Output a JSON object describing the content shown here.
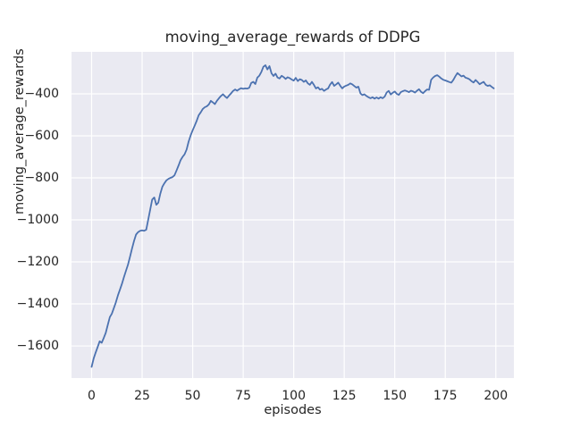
{
  "figure": {
    "kind": "matplotlib-seaborn-darkgrid line plot",
    "background_color": "#ffffff"
  },
  "chart_data": {
    "type": "line",
    "title": "moving_average_rewards of DDPG",
    "xlabel": "episodes",
    "ylabel": "moving_average_rewards",
    "legend": false,
    "grid": true,
    "x_mode": "index",
    "xlim": [
      -9.95,
      208.95
    ],
    "ylim": [
      -1753,
      -200
    ],
    "xticks": [
      0,
      25,
      50,
      75,
      100,
      125,
      150,
      175,
      200
    ],
    "xtick_labels": [
      "0",
      "25",
      "50",
      "75",
      "100",
      "125",
      "150",
      "175",
      "200"
    ],
    "ytick_values": [
      -400,
      -600,
      -800,
      -1000,
      -1200,
      -1400,
      -1600
    ],
    "ytick_labels": [
      "−400",
      "−600",
      "−800",
      "−1000",
      "−1200",
      "−1400",
      "−1600"
    ],
    "colors": {
      "line": "#4C72B0",
      "axes_background": "#EAEAF2",
      "gridline": "#ffffff",
      "text": "#262626"
    },
    "series": [
      {
        "name": "moving_average_rewards",
        "x_start": 0,
        "x_step": 1,
        "values": [
          -1700,
          -1660,
          -1632,
          -1605,
          -1578,
          -1585,
          -1562,
          -1538,
          -1500,
          -1463,
          -1447,
          -1420,
          -1393,
          -1360,
          -1332,
          -1305,
          -1272,
          -1243,
          -1213,
          -1175,
          -1137,
          -1100,
          -1070,
          -1058,
          -1052,
          -1050,
          -1052,
          -1047,
          -1000,
          -950,
          -903,
          -893,
          -928,
          -918,
          -875,
          -843,
          -826,
          -812,
          -805,
          -800,
          -796,
          -788,
          -765,
          -742,
          -716,
          -700,
          -688,
          -665,
          -628,
          -598,
          -573,
          -552,
          -528,
          -502,
          -488,
          -472,
          -464,
          -459,
          -450,
          -433,
          -441,
          -449,
          -433,
          -421,
          -410,
          -402,
          -412,
          -420,
          -408,
          -398,
          -386,
          -379,
          -385,
          -378,
          -373,
          -376,
          -374,
          -375,
          -371,
          -348,
          -343,
          -353,
          -323,
          -313,
          -296,
          -271,
          -264,
          -284,
          -268,
          -302,
          -315,
          -304,
          -322,
          -327,
          -314,
          -320,
          -329,
          -321,
          -325,
          -332,
          -337,
          -324,
          -339,
          -330,
          -334,
          -343,
          -336,
          -350,
          -357,
          -343,
          -357,
          -374,
          -369,
          -380,
          -376,
          -386,
          -379,
          -374,
          -356,
          -344,
          -362,
          -355,
          -347,
          -361,
          -374,
          -365,
          -361,
          -357,
          -350,
          -355,
          -363,
          -370,
          -366,
          -398,
          -406,
          -402,
          -410,
          -416,
          -421,
          -416,
          -423,
          -417,
          -423,
          -416,
          -421,
          -413,
          -393,
          -386,
          -403,
          -395,
          -389,
          -400,
          -405,
          -392,
          -387,
          -384,
          -387,
          -392,
          -385,
          -388,
          -394,
          -385,
          -378,
          -390,
          -397,
          -387,
          -379,
          -381,
          -333,
          -322,
          -315,
          -311,
          -318,
          -327,
          -333,
          -336,
          -340,
          -344,
          -347,
          -333,
          -316,
          -301,
          -309,
          -317,
          -313,
          -323,
          -326,
          -331,
          -340,
          -346,
          -334,
          -344,
          -354,
          -348,
          -343,
          -357,
          -362,
          -359,
          -367,
          -374
        ]
      }
    ]
  }
}
